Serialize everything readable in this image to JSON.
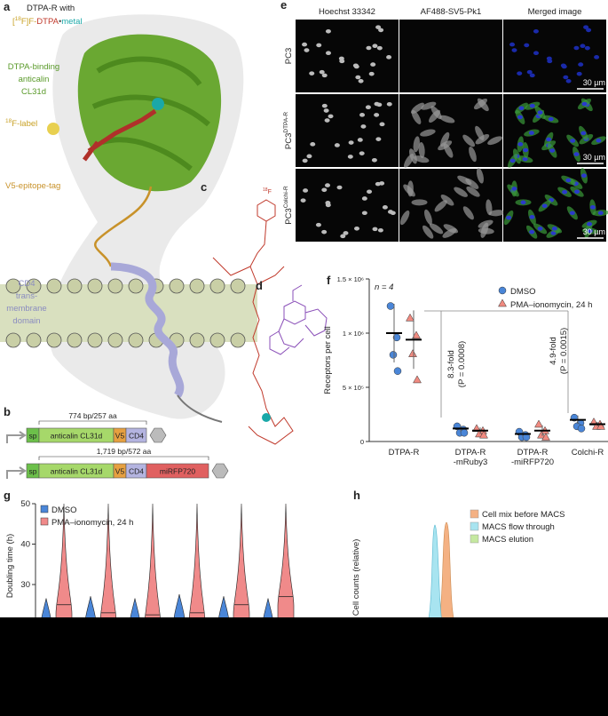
{
  "panel_labels": [
    "a",
    "b",
    "c",
    "d",
    "e",
    "f",
    "g",
    "h"
  ],
  "panel_a": {
    "title_line1": "DTPA-R with",
    "title_parts": [
      {
        "text": "[",
        "color": "#c9a227"
      },
      {
        "text": "18",
        "color": "#c9a227",
        "sup": true
      },
      {
        "text": "F]F-",
        "color": "#c9a227"
      },
      {
        "text": "DTPA",
        "color": "#c0392b"
      },
      {
        "text": "•",
        "color": "#555555"
      },
      {
        "text": "metal",
        "color": "#1aa8a8"
      }
    ],
    "anticalin_label": [
      "DTPA-binding",
      "anticalin",
      "CL31d"
    ],
    "label_18f": {
      "sup": "18",
      "text": "F-label"
    },
    "v5_label": "V5-epitope-tag",
    "cd4_label": [
      "CD4",
      "trans-",
      "membrane",
      "domain"
    ]
  },
  "panel_b": {
    "constructs": [
      {
        "size": "774 bp/257 aa",
        "segments": [
          "sp",
          "anticalin CL31d",
          "V5",
          "CD4"
        ]
      },
      {
        "size": "1,719 bp/572 aa",
        "segments": [
          "sp",
          "anticalin CL31d",
          "V5",
          "CD4",
          "miRFP720"
        ]
      }
    ]
  },
  "panel_c": {
    "label_18f": {
      "sup": "18",
      "text": "F"
    }
  },
  "panel_e": {
    "columns": [
      "Hoechst 33342",
      "AF488-SV5-Pk1",
      "Merged image"
    ],
    "rows": [
      {
        "base": "PC3"
      },
      {
        "base": "PC3",
        "sup": "DTPA-R"
      },
      {
        "base": "PC3",
        "sup": "Colchi-R"
      }
    ],
    "scale_bar": [
      "30 µm",
      "30 µm",
      "30 µm"
    ]
  },
  "chart_data": [
    {
      "type": "dot",
      "ylabel": "Receptors per cell",
      "categories": [
        "DTPA-R",
        "DTPA-R\n-mRuby3",
        "DTPA-R\n-miRFP720",
        "Colchi-R"
      ],
      "ylim": [
        0,
        1500000
      ],
      "yticks": [
        0,
        {
          "value": 500000,
          "label": "5 × 10⁵"
        },
        {
          "value": 1000000,
          "label": "1 × 10⁶"
        },
        {
          "value": 1500000,
          "label": "1.5 × 10⁶"
        }
      ],
      "annotation": "n = 4",
      "comparisons": [
        {
          "fold": "8.3-fold",
          "p": "(P = 0.0008)"
        },
        {
          "fold": "4.9-fold",
          "p": "(P = 0.0015)"
        }
      ],
      "series": [
        {
          "name": "DMSO",
          "color": "#4a86d8",
          "marker": "circle",
          "values": [
            [
              1250000,
              960000,
              800000,
              650000
            ],
            [
              140000,
              110000,
              80000,
              80000
            ],
            [
              90000,
              60000,
              40000,
              40000
            ],
            [
              220000,
              170000,
              140000,
              120000
            ]
          ],
          "mean": [
            1000000,
            120000,
            70000,
            200000
          ],
          "sd": [
            270000,
            30000,
            25000,
            40000
          ]
        },
        {
          "name": "PMA–ionomycin, 24 h",
          "color": "#f08a80",
          "marker": "triangle",
          "values": [
            [
              1140000,
              980000,
              810000,
              570000
            ],
            [
              120000,
              100000,
              70000,
              60000
            ],
            [
              160000,
              100000,
              60000,
              40000
            ],
            [
              180000,
              160000,
              140000,
              140000
            ]
          ],
          "mean": [
            940000,
            100000,
            100000,
            160000
          ],
          "sd": [
            270000,
            30000,
            50000,
            20000
          ]
        }
      ]
    },
    {
      "type": "violin",
      "ylabel": "Doubling time (h)",
      "ylim": [
        20,
        50
      ],
      "yticks": [
        30,
        40,
        50
      ],
      "categories": [
        null,
        null,
        null,
        null,
        null,
        null
      ],
      "series": [
        {
          "name": "DMSO",
          "color": "#4a86d8",
          "values": [
            20,
            20.5,
            20,
            21,
            20.5,
            20
          ]
        },
        {
          "name": "PMA–ionomycin, 24 h",
          "color": "#f08a8a",
          "values": [
            25,
            23,
            22.5,
            23,
            25,
            27
          ]
        }
      ]
    },
    {
      "type": "density",
      "ylabel": "Cell counts (relative)",
      "series": [
        {
          "name": "Cell mix before MACS",
          "color": "#f4b183"
        },
        {
          "name": "MACS flow through",
          "color": "#a8e4f0"
        },
        {
          "name": "MACS elution",
          "color": "#c5e8a0"
        }
      ]
    }
  ]
}
